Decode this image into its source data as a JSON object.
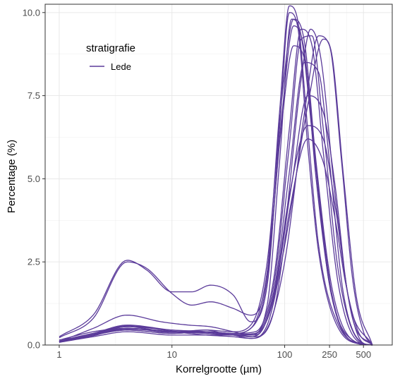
{
  "chart_data": {
    "type": "line",
    "xlabel": "Korrelgrootte (µm)",
    "ylabel": "Percentage (%)",
    "x_scale": "log10",
    "xlim": [
      0.75,
      900
    ],
    "ylim": [
      0,
      10.25
    ],
    "x_ticks": [
      {
        "value": 1,
        "label": "1"
      },
      {
        "value": 10,
        "label": "10"
      },
      {
        "value": 100,
        "label": "100"
      },
      {
        "value": 250,
        "label": "250"
      },
      {
        "value": 500,
        "label": "500"
      }
    ],
    "y_ticks": [
      {
        "value": 0,
        "label": "0.0"
      },
      {
        "value": 2.5,
        "label": "2.5"
      },
      {
        "value": 5,
        "label": "5.0"
      },
      {
        "value": 7.5,
        "label": "7.5"
      },
      {
        "value": 10,
        "label": "10.0"
      }
    ],
    "grid": true,
    "legend": {
      "title": "stratigrafie",
      "position": "top-left",
      "entries": [
        "Lede"
      ]
    },
    "line_color": "#5b3b9a",
    "series": [
      {
        "values": [
          [
            1,
            0.25
          ],
          [
            2,
            0.9
          ],
          [
            4,
            2.55
          ],
          [
            6,
            2.25
          ],
          [
            10,
            1.6
          ],
          [
            15,
            1.6
          ],
          [
            22,
            1.8
          ],
          [
            35,
            1.5
          ],
          [
            50,
            0.7
          ],
          [
            70,
            1.8
          ],
          [
            90,
            6.5
          ],
          [
            110,
            10.0
          ],
          [
            130,
            9.6
          ],
          [
            160,
            6.0
          ],
          [
            200,
            2.8
          ],
          [
            300,
            0.5
          ],
          [
            500,
            0.02
          ],
          [
            600,
            0
          ]
        ]
      },
      {
        "values": [
          [
            1,
            0.22
          ],
          [
            2,
            0.8
          ],
          [
            4,
            2.5
          ],
          [
            6,
            2.3
          ],
          [
            10,
            1.55
          ],
          [
            15,
            1.2
          ],
          [
            22,
            1.3
          ],
          [
            35,
            1.1
          ],
          [
            50,
            0.9
          ],
          [
            70,
            2.2
          ],
          [
            90,
            7.0
          ],
          [
            110,
            10.2
          ],
          [
            130,
            9.8
          ],
          [
            160,
            6.5
          ],
          [
            200,
            3.0
          ],
          [
            300,
            0.6
          ],
          [
            500,
            0.03
          ],
          [
            600,
            0
          ]
        ]
      },
      {
        "values": [
          [
            1,
            0.1
          ],
          [
            2,
            0.5
          ],
          [
            4,
            0.9
          ],
          [
            8,
            0.7
          ],
          [
            14,
            0.6
          ],
          [
            22,
            0.55
          ],
          [
            35,
            0.4
          ],
          [
            50,
            0.3
          ],
          [
            70,
            1.2
          ],
          [
            90,
            5.5
          ],
          [
            115,
            9.8
          ],
          [
            140,
            9.3
          ],
          [
            180,
            6.0
          ],
          [
            250,
            1.8
          ],
          [
            400,
            0.15
          ],
          [
            600,
            0
          ]
        ]
      },
      {
        "values": [
          [
            1,
            0.15
          ],
          [
            2,
            0.4
          ],
          [
            4,
            0.5
          ],
          [
            10,
            0.4
          ],
          [
            20,
            0.3
          ],
          [
            35,
            0.25
          ],
          [
            50,
            0.2
          ],
          [
            70,
            0.5
          ],
          [
            100,
            2.5
          ],
          [
            150,
            7.0
          ],
          [
            200,
            9.3
          ],
          [
            250,
            9.0
          ],
          [
            320,
            5.5
          ],
          [
            400,
            2.0
          ],
          [
            500,
            0.4
          ],
          [
            600,
            0
          ]
        ]
      },
      {
        "values": [
          [
            1,
            0.12
          ],
          [
            2,
            0.35
          ],
          [
            4,
            0.6
          ],
          [
            10,
            0.45
          ],
          [
            20,
            0.4
          ],
          [
            35,
            0.3
          ],
          [
            50,
            0.25
          ],
          [
            70,
            0.8
          ],
          [
            100,
            3.5
          ],
          [
            140,
            8.0
          ],
          [
            170,
            9.5
          ],
          [
            210,
            8.6
          ],
          [
            280,
            4.5
          ],
          [
            400,
            0.8
          ],
          [
            600,
            0
          ]
        ]
      },
      {
        "values": [
          [
            1,
            0.1
          ],
          [
            2,
            0.3
          ],
          [
            4,
            0.45
          ],
          [
            10,
            0.35
          ],
          [
            20,
            0.4
          ],
          [
            35,
            0.3
          ],
          [
            50,
            0.2
          ],
          [
            70,
            0.6
          ],
          [
            100,
            3.0
          ],
          [
            160,
            7.2
          ],
          [
            220,
            9.2
          ],
          [
            260,
            8.8
          ],
          [
            330,
            5.2
          ],
          [
            430,
            1.5
          ],
          [
            600,
            0
          ]
        ]
      },
      {
        "values": [
          [
            1,
            0.08
          ],
          [
            2,
            0.25
          ],
          [
            4,
            0.4
          ],
          [
            10,
            0.3
          ],
          [
            20,
            0.3
          ],
          [
            35,
            0.3
          ],
          [
            55,
            0.25
          ],
          [
            80,
            1.0
          ],
          [
            110,
            4.0
          ],
          [
            160,
            6.2
          ],
          [
            220,
            5.5
          ],
          [
            280,
            3.8
          ],
          [
            350,
            1.8
          ],
          [
            450,
            0.4
          ],
          [
            600,
            0
          ]
        ]
      },
      {
        "values": [
          [
            1,
            0.1
          ],
          [
            2,
            0.3
          ],
          [
            4,
            0.5
          ],
          [
            10,
            0.4
          ],
          [
            20,
            0.35
          ],
          [
            35,
            0.3
          ],
          [
            55,
            0.3
          ],
          [
            80,
            1.5
          ],
          [
            110,
            4.5
          ],
          [
            160,
            6.6
          ],
          [
            220,
            6.2
          ],
          [
            280,
            4.2
          ],
          [
            380,
            1.2
          ],
          [
            600,
            0
          ]
        ]
      },
      {
        "values": [
          [
            1,
            0.1
          ],
          [
            2,
            0.35
          ],
          [
            4,
            0.55
          ],
          [
            10,
            0.45
          ],
          [
            20,
            0.4
          ],
          [
            35,
            0.35
          ],
          [
            50,
            0.5
          ],
          [
            70,
            2.0
          ],
          [
            95,
            7.0
          ],
          [
            120,
            9.6
          ],
          [
            150,
            8.8
          ],
          [
            190,
            5.0
          ],
          [
            260,
            1.5
          ],
          [
            400,
            0.1
          ],
          [
            600,
            0
          ]
        ]
      },
      {
        "values": [
          [
            1,
            0.12
          ],
          [
            2,
            0.35
          ],
          [
            4,
            0.5
          ],
          [
            10,
            0.4
          ],
          [
            20,
            0.45
          ],
          [
            35,
            0.4
          ],
          [
            50,
            0.6
          ],
          [
            70,
            2.5
          ],
          [
            95,
            7.5
          ],
          [
            120,
            9.8
          ],
          [
            150,
            9.1
          ],
          [
            190,
            5.5
          ],
          [
            260,
            1.8
          ],
          [
            400,
            0.15
          ],
          [
            600,
            0
          ]
        ]
      },
      {
        "values": [
          [
            1,
            0.08
          ],
          [
            2,
            0.3
          ],
          [
            4,
            0.45
          ],
          [
            10,
            0.35
          ],
          [
            20,
            0.4
          ],
          [
            35,
            0.35
          ],
          [
            50,
            0.5
          ],
          [
            70,
            2.2
          ],
          [
            95,
            6.8
          ],
          [
            120,
            9.0
          ],
          [
            150,
            8.6
          ],
          [
            190,
            5.3
          ],
          [
            260,
            1.6
          ],
          [
            400,
            0.1
          ],
          [
            600,
            0
          ]
        ]
      },
      {
        "values": [
          [
            1,
            0.1
          ],
          [
            2,
            0.3
          ],
          [
            4,
            0.55
          ],
          [
            10,
            0.4
          ],
          [
            20,
            0.4
          ],
          [
            35,
            0.35
          ],
          [
            55,
            0.4
          ],
          [
            80,
            2.0
          ],
          [
            110,
            6.5
          ],
          [
            140,
            9.5
          ],
          [
            175,
            9.0
          ],
          [
            220,
            5.8
          ],
          [
            300,
            1.8
          ],
          [
            450,
            0.1
          ],
          [
            600,
            0
          ]
        ]
      },
      {
        "values": [
          [
            1,
            0.09
          ],
          [
            2,
            0.28
          ],
          [
            4,
            0.5
          ],
          [
            10,
            0.38
          ],
          [
            20,
            0.45
          ],
          [
            35,
            0.3
          ],
          [
            55,
            0.35
          ],
          [
            80,
            1.8
          ],
          [
            110,
            6.0
          ],
          [
            140,
            9.2
          ],
          [
            175,
            9.3
          ],
          [
            220,
            6.5
          ],
          [
            300,
            2.2
          ],
          [
            450,
            0.15
          ],
          [
            600,
            0
          ]
        ]
      },
      {
        "values": [
          [
            1,
            0.11
          ],
          [
            2,
            0.32
          ],
          [
            4,
            0.58
          ],
          [
            10,
            0.42
          ],
          [
            20,
            0.35
          ],
          [
            35,
            0.3
          ],
          [
            55,
            0.3
          ],
          [
            80,
            1.6
          ],
          [
            110,
            5.2
          ],
          [
            150,
            8.5
          ],
          [
            200,
            8.2
          ],
          [
            250,
            5.5
          ],
          [
            330,
            1.6
          ],
          [
            500,
            0.05
          ],
          [
            600,
            0
          ]
        ]
      },
      {
        "values": [
          [
            1,
            0.1
          ],
          [
            2,
            0.3
          ],
          [
            4,
            0.48
          ],
          [
            10,
            0.4
          ],
          [
            20,
            0.38
          ],
          [
            35,
            0.32
          ],
          [
            55,
            0.35
          ],
          [
            80,
            1.4
          ],
          [
            115,
            4.8
          ],
          [
            160,
            7.5
          ],
          [
            220,
            7.0
          ],
          [
            280,
            4.8
          ],
          [
            360,
            1.6
          ],
          [
            500,
            0.05
          ],
          [
            600,
            0
          ]
        ]
      }
    ]
  }
}
